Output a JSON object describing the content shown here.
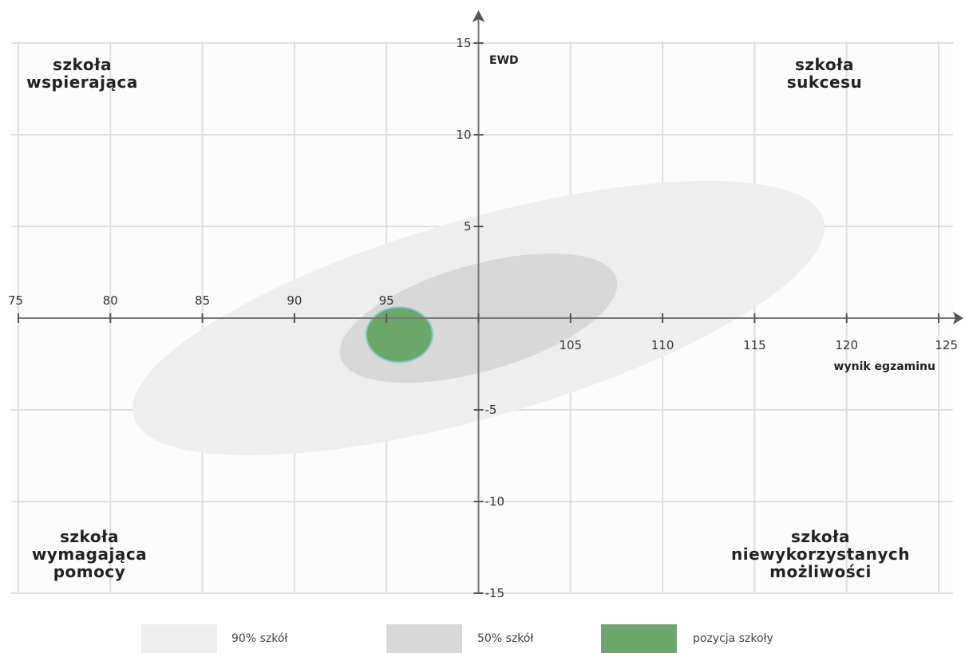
{
  "chart_data": {
    "type": "scatter",
    "xlabel": "wynik egzaminu",
    "ylabel": "EWD",
    "xlim": [
      75,
      125
    ],
    "ylim": [
      -15,
      15
    ],
    "x_ticks": [
      75,
      80,
      85,
      90,
      95,
      100,
      105,
      110,
      115,
      120,
      125
    ],
    "x_tick_labels": [
      "75",
      "80",
      "85",
      "90",
      "95",
      "",
      "105",
      "110",
      "115",
      "120",
      "125"
    ],
    "y_ticks": [
      15,
      10,
      5,
      -5,
      -10,
      -15
    ],
    "y_tick_labels": [
      "15",
      "10",
      "5",
      "-5",
      "-10",
      "-15"
    ],
    "grid": true,
    "legend_position": "bottom",
    "quadrants": {
      "top_left": [
        "szkoła",
        "wspierająca"
      ],
      "top_right": [
        "szkoła",
        "sukcesu"
      ],
      "bottom_left": [
        "szkoła",
        "wymagająca",
        "pomocy"
      ],
      "bottom_right": [
        "szkoła",
        "niewykorzystanych",
        "możliwości"
      ]
    },
    "regions": [
      {
        "name": "90% szkół",
        "color": "#eeeeee",
        "center": [
          100,
          0
        ],
        "half_axis_major": 19.5,
        "half_axis_minor": 5.4,
        "angle_deg": 16
      },
      {
        "name": "50% szkół",
        "color": "#d8d8d8",
        "center": [
          100,
          0
        ],
        "half_axis_major": 7.8,
        "half_axis_minor": 2.9,
        "angle_deg": 16
      }
    ],
    "school_position": {
      "name": "pozycja szkoły",
      "color": "#6aa86a",
      "border": "#87c8c0",
      "x": 95.7,
      "y": -0.9,
      "x_half_width": 1.8,
      "y_half_height": 1.5
    },
    "legend": [
      {
        "label": "90% szkół",
        "color": "#eeeeee"
      },
      {
        "label": "50% szkół",
        "color": "#d8d8d8"
      },
      {
        "label": "pozycja szkoły",
        "color": "#6aa86a"
      }
    ]
  }
}
